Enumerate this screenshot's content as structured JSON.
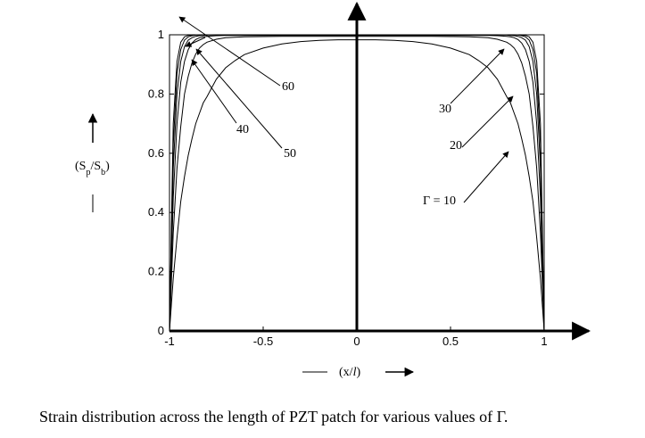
{
  "chart_data": {
    "type": "line",
    "xlim": [
      -1,
      1
    ],
    "ylim": [
      0,
      1
    ],
    "x_ticks": [
      "-1",
      "-0.5",
      "0",
      "0.5",
      "1"
    ],
    "y_ticks": [
      "0",
      "0.2",
      "0.4",
      "0.6",
      "0.8",
      "1"
    ],
    "xlabel": "(x/l)",
    "ylabel": "(Sp/Sb)",
    "legend": "none",
    "grid": false,
    "x": [
      -1,
      -0.98,
      -0.96,
      -0.94,
      -0.92,
      -0.9,
      -0.88,
      -0.86,
      -0.84,
      -0.82,
      -0.8,
      -0.75,
      -0.7,
      -0.65,
      -0.6,
      -0.5,
      -0.4,
      -0.3,
      -0.2,
      -0.1,
      0,
      0.1,
      0.2,
      0.3,
      0.4,
      0.5,
      0.6,
      0.65,
      0.7,
      0.75,
      0.8,
      0.82,
      0.84,
      0.86,
      0.88,
      0.9,
      0.92,
      0.94,
      0.96,
      0.98,
      1
    ],
    "series": [
      {
        "gamma": 10,
        "values": [
          0,
          0.177,
          0.315,
          0.437,
          0.521,
          0.593,
          0.649,
          0.7,
          0.735,
          0.77,
          0.791,
          0.85,
          0.889,
          0.913,
          0.933,
          0.955,
          0.969,
          0.977,
          0.981,
          0.983,
          0.983,
          0.983,
          0.981,
          0.977,
          0.969,
          0.955,
          0.933,
          0.913,
          0.889,
          0.85,
          0.791,
          0.77,
          0.735,
          0.7,
          0.649,
          0.593,
          0.521,
          0.437,
          0.315,
          0.177,
          0
        ]
      },
      {
        "gamma": 20,
        "values": [
          0,
          0.33,
          0.55,
          0.69,
          0.8,
          0.86,
          0.905,
          0.935,
          0.955,
          0.967,
          0.975,
          0.985,
          0.99,
          0.992,
          0.993,
          0.994,
          0.995,
          0.995,
          0.995,
          0.995,
          0.995,
          0.995,
          0.995,
          0.995,
          0.995,
          0.994,
          0.993,
          0.992,
          0.99,
          0.985,
          0.975,
          0.967,
          0.955,
          0.935,
          0.905,
          0.86,
          0.8,
          0.69,
          0.55,
          0.33,
          0
        ]
      },
      {
        "gamma": 30,
        "values": [
          0,
          0.45,
          0.7,
          0.84,
          0.91,
          0.95,
          0.972,
          0.984,
          0.99,
          0.993,
          0.995,
          0.997,
          0.998,
          0.998,
          0.998,
          0.998,
          0.998,
          0.998,
          0.998,
          0.998,
          0.998,
          0.998,
          0.998,
          0.998,
          0.998,
          0.998,
          0.998,
          0.998,
          0.998,
          0.997,
          0.995,
          0.993,
          0.99,
          0.984,
          0.972,
          0.95,
          0.91,
          0.84,
          0.7,
          0.45,
          0
        ]
      },
      {
        "gamma": 40,
        "values": [
          0,
          0.55,
          0.8,
          0.91,
          0.96,
          0.982,
          0.99,
          0.995,
          0.997,
          0.998,
          0.999,
          0.999,
          0.999,
          0.999,
          0.999,
          0.999,
          0.999,
          0.999,
          0.999,
          0.999,
          0.999,
          0.999,
          0.999,
          0.999,
          0.999,
          0.999,
          0.999,
          0.999,
          0.999,
          0.999,
          0.999,
          0.998,
          0.997,
          0.995,
          0.99,
          0.982,
          0.96,
          0.91,
          0.8,
          0.55,
          0
        ]
      },
      {
        "gamma": 50,
        "values": [
          0,
          0.63,
          0.87,
          0.95,
          0.982,
          0.993,
          0.997,
          0.999,
          0.999,
          1,
          1,
          1,
          1,
          1,
          1,
          1,
          1,
          1,
          1,
          1,
          1,
          1,
          1,
          1,
          1,
          1,
          1,
          1,
          1,
          1,
          1,
          1,
          0.999,
          0.999,
          0.997,
          0.993,
          0.982,
          0.95,
          0.87,
          0.63,
          0
        ]
      },
      {
        "gamma": 60,
        "values": [
          0,
          0.7,
          0.91,
          0.975,
          0.993,
          0.998,
          0.999,
          1,
          1,
          1,
          1,
          1,
          1,
          1,
          1,
          1,
          1,
          1,
          1,
          1,
          1,
          1,
          1,
          1,
          1,
          1,
          1,
          1,
          1,
          1,
          1,
          1,
          1,
          1,
          0.999,
          0.998,
          0.993,
          0.975,
          0.91,
          0.7,
          0
        ]
      }
    ],
    "annotations": [
      "60",
      "40",
      "50",
      "30",
      "20",
      "Γ = 10"
    ],
    "caption": "Strain distribution across the length of PZT patch for various values of Γ."
  }
}
